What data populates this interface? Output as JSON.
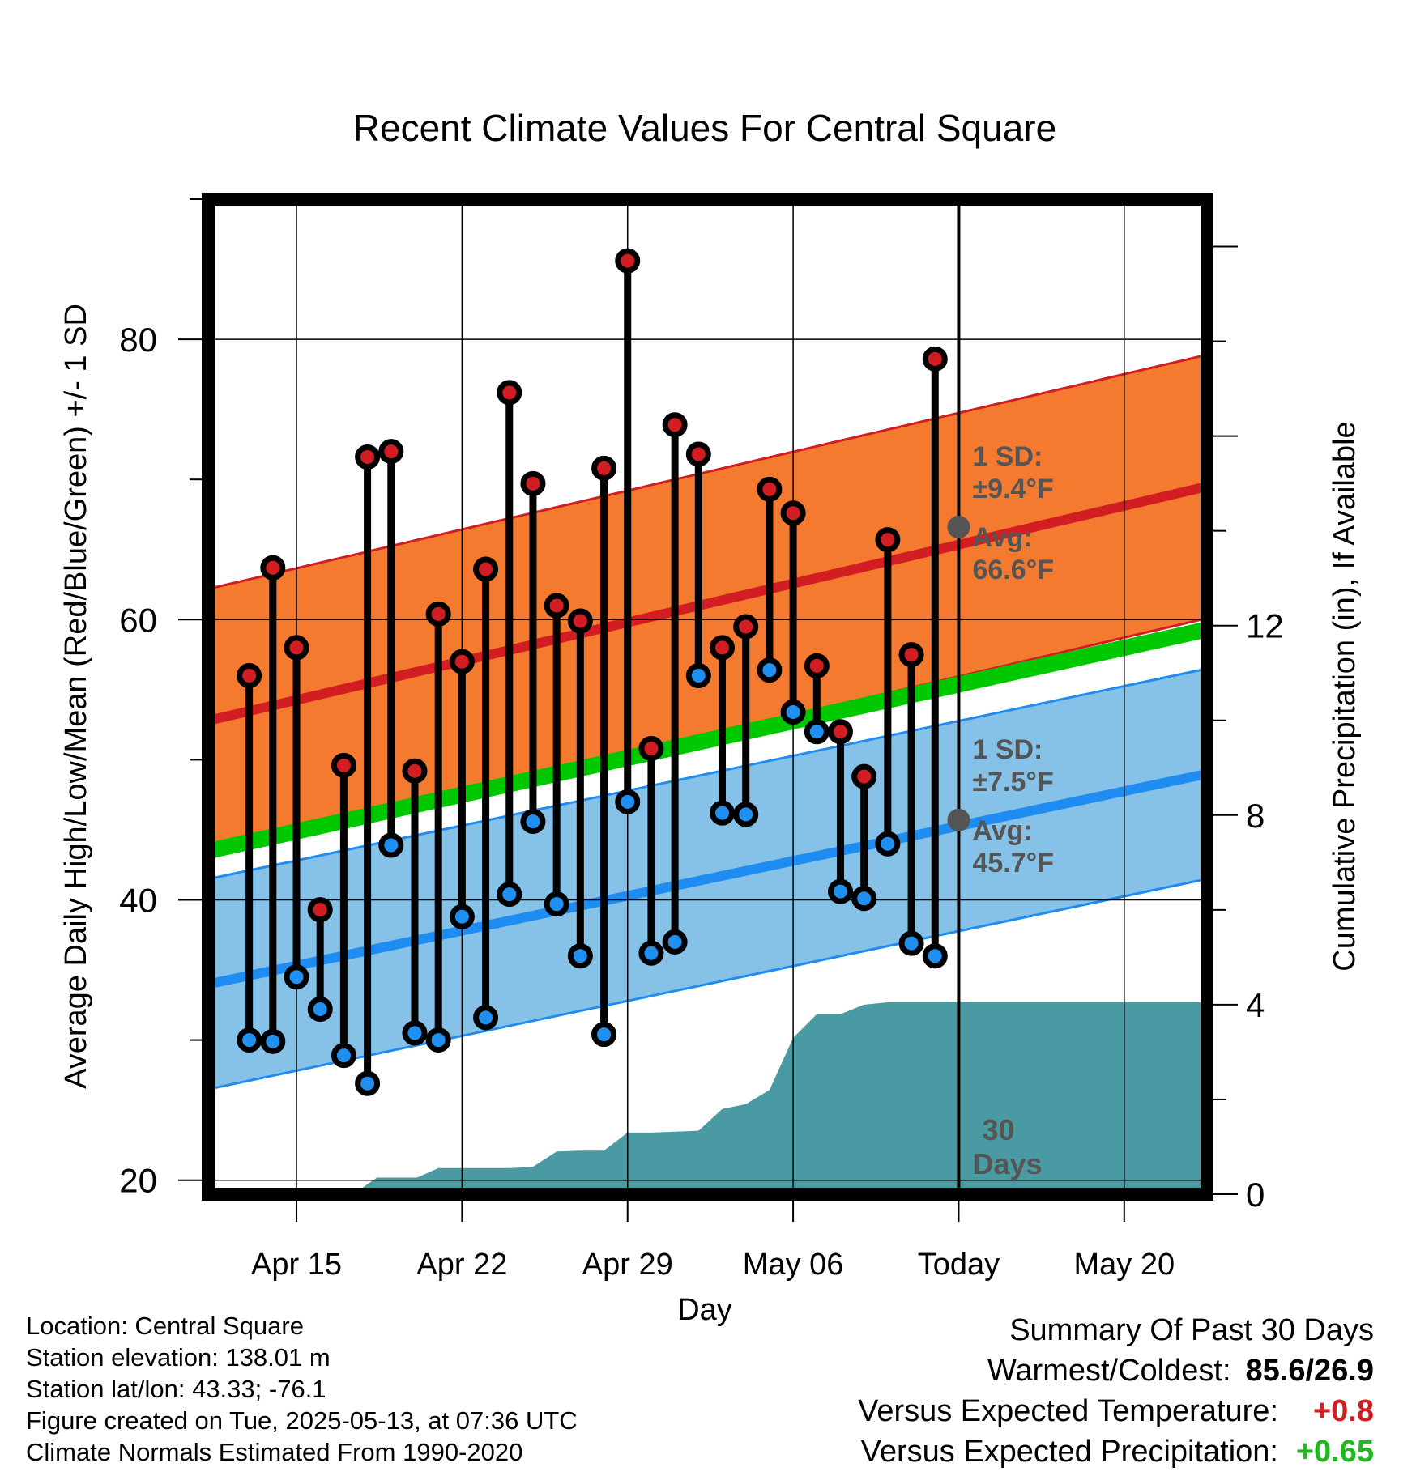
{
  "title": "Recent Climate Values For Central Square",
  "colors": {
    "high_band": "#f47a30",
    "high_line": "#d21e22",
    "low_band": "#86c2e8",
    "low_line": "#1e8cf0",
    "mean_line": "#00c800",
    "precip": "#4a9aa3",
    "high_dot": "#d21e22",
    "low_dot": "#2090f0",
    "annotation": "#555555",
    "positive_temp": "#d21e22",
    "positive_precip": "#1fb81f"
  },
  "chart_data": {
    "type": "line",
    "xlabel": "Day",
    "ylabel_left": "Average Daily High/Low/Mean (Red/Blue/Green) +/- 1 SD",
    "ylabel_right": "Cumulative Precipitation (in), If Available",
    "ylim_left": [
      19,
      90
    ],
    "ylim_right": [
      0,
      21
    ],
    "xlim": [
      -3.7,
      38.5
    ],
    "left_ticks": [
      "20",
      "40",
      "60",
      "80"
    ],
    "right_ticks": [
      "0",
      "4",
      "8",
      "12"
    ],
    "x_ticks": [
      {
        "day": 0,
        "label": "Apr 15"
      },
      {
        "day": 7,
        "label": "Apr 22"
      },
      {
        "day": 14,
        "label": "Apr 29"
      },
      {
        "day": 21,
        "label": "May 06"
      },
      {
        "day": 28,
        "label": "Today"
      },
      {
        "day": 35,
        "label": "May 20"
      }
    ],
    "today_day": 28,
    "grid": true,
    "normal_high": {
      "start": 52.8,
      "end": 69.5
    },
    "normal_low": {
      "start": 34.0,
      "end": 49.0
    },
    "normal_mean": {
      "start": 43.5,
      "end": 59.3
    },
    "high_sd": 9.4,
    "low_sd": 7.5,
    "observations": {
      "day": [
        -2,
        -1,
        0,
        1,
        2,
        3,
        4,
        5,
        6,
        7,
        8,
        9,
        10,
        11,
        12,
        13,
        14,
        15,
        16,
        17,
        18,
        19,
        20,
        21,
        22,
        23,
        24,
        25,
        26,
        27
      ],
      "high": [
        56.0,
        63.7,
        58.0,
        39.3,
        49.6,
        71.6,
        72.0,
        49.2,
        60.4,
        57.0,
        63.6,
        76.2,
        69.7,
        61.0,
        59.9,
        70.8,
        85.6,
        50.8,
        73.9,
        71.8,
        58.0,
        59.5,
        69.3,
        67.6,
        56.7,
        52.0,
        48.8,
        65.7,
        57.5,
        78.6
      ],
      "low": [
        30.0,
        29.9,
        34.5,
        32.2,
        28.9,
        26.9,
        43.9,
        30.5,
        30.0,
        38.8,
        31.6,
        40.4,
        45.6,
        39.7,
        36.0,
        30.4,
        47.0,
        36.2,
        37.0,
        56.0,
        46.2,
        46.1,
        56.4,
        53.4,
        52.0,
        40.6,
        40.1,
        44.0,
        36.9,
        36.0
      ]
    },
    "precip_cumulative": {
      "day": [
        -4,
        0,
        2.4,
        3.4,
        4.5,
        5.1,
        6.0,
        7.0,
        8.0,
        9.0,
        10.0,
        11.0,
        12.0,
        13.0,
        14.0,
        15.0,
        16.0,
        17.0,
        18.0,
        19.0,
        20.0,
        21.0,
        22.0,
        23.0,
        24.0,
        25.0,
        26.0,
        27.0,
        28.0,
        38.5
      ],
      "value": [
        0,
        0,
        0,
        0.35,
        0.35,
        0.35,
        0.55,
        0.55,
        0.55,
        0.55,
        0.58,
        0.9,
        0.92,
        0.92,
        1.3,
        1.3,
        1.32,
        1.34,
        1.8,
        1.9,
        2.2,
        3.3,
        3.8,
        3.8,
        4.0,
        4.05,
        4.05,
        4.05,
        4.05,
        4.05
      ]
    },
    "annotations": {
      "high_sd_label": "1 SD:",
      "high_sd_value": "±9.4°F",
      "high_avg_label": "Avg:",
      "high_avg_value": "66.6°F",
      "low_sd_label": "1 SD:",
      "low_sd_value": "±7.5°F",
      "low_avg_label": "Avg:",
      "low_avg_value": "45.7°F",
      "high_avg_point": 66.6,
      "low_avg_point": 45.7,
      "days_label_1": "30",
      "days_label_2": "Days"
    }
  },
  "footer_left": {
    "location": "Location: Central Square",
    "elevation": "Station elevation: 138.01 m",
    "latlon": "Station lat/lon: 43.33; -76.1",
    "created": "Figure created on Tue, 2025-05-13, at 07:36 UTC",
    "normals": "Climate Normals Estimated From 1990-2020"
  },
  "footer_right": {
    "summary": "Summary Of Past 30 Days",
    "warmest_label": "Warmest/Coldest:",
    "warmest_value": "85.6/26.9",
    "temp_label": "Versus Expected Temperature:",
    "temp_value": "+0.8",
    "precip_label": "Versus Expected Precipitation:",
    "precip_value": "+0.65"
  }
}
